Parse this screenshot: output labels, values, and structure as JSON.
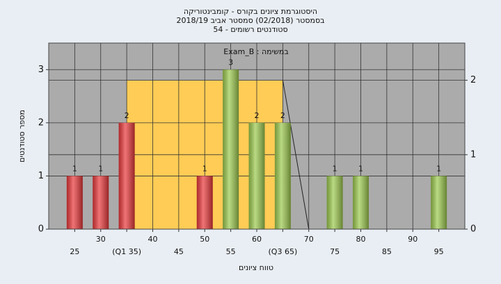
{
  "chart_data": {
    "type": "bar",
    "title": "היסטוגרמת ציונים בקורס - קומבינטוריקה",
    "subtitle": "בסמסטר (02/2018) סמסטר אביב 2018/19",
    "subtitle2": "סטודנטים רשומים - 54",
    "annotation": "במשימה : Exam_B",
    "x_label": "טווח ציונים",
    "y_label": "מספר סטודנטים",
    "x": [
      25,
      30,
      35,
      40,
      45,
      50,
      55,
      60,
      65,
      70,
      75,
      80,
      85,
      90,
      95
    ],
    "values": [
      1,
      1,
      2,
      0,
      0,
      1,
      3,
      2,
      2,
      0,
      1,
      1,
      0,
      0,
      1
    ],
    "colors": [
      "#e8383a",
      "#e8383a",
      "#e8383a",
      "#e8383a",
      "#e8383a",
      "#e8383a",
      "#9cc94e",
      "#9cc94e",
      "#9cc94e",
      "#9cc94e",
      "#9cc94e",
      "#9cc94e",
      "#9cc94e",
      "#9cc94e",
      "#9cc94e"
    ],
    "xlim": [
      20,
      100
    ],
    "xticks": [
      25,
      30,
      {
        "value": 35,
        "label": "(Q1 35)"
      },
      40,
      45,
      50,
      55,
      60,
      {
        "value": 65,
        "label": "(Q3 65)"
      },
      70,
      75,
      80,
      85,
      90,
      95
    ],
    "ylim": [
      0,
      3.5
    ],
    "yticks": [
      0,
      1,
      2,
      3
    ],
    "y2lim": [
      0,
      2.5
    ],
    "y2ticks": [
      0,
      1,
      2
    ],
    "quartile_band": {
      "from": 35,
      "to": 65,
      "end": 70,
      "height": 2,
      "color": "#ffcc55"
    },
    "grid": true
  }
}
